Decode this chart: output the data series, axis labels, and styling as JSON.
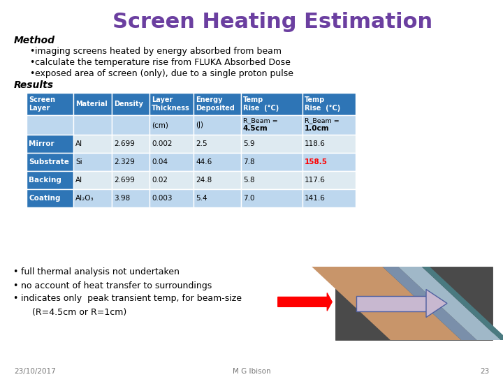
{
  "title": "Screen Heating Estimation",
  "title_color": "#6B3FA0",
  "title_fontsize": 22,
  "bg_color": "#FFFFFF",
  "method_label": "Method",
  "results_label": "Results",
  "method_bullets": [
    "imaging screens heated by energy absorbed from beam",
    "calculate the temperature rise from FLUKA Absorbed Dose",
    "exposed area of screen (only), due to a single proton pulse"
  ],
  "bottom_bullets": [
    "full thermal analysis not undertaken",
    "no account of heat transfer to surroundings",
    "indicates only  peak transient temp, for beam-size"
  ],
  "bottom_bullet4": "    (R=4.5cm or R=1cm)",
  "table_header_bg": "#2E75B6",
  "table_header_color": "#FFFFFF",
  "table_row_label_bg": "#2E75B6",
  "table_row_label_color": "#FFFFFF",
  "table_unit_row_bg": "#BDD7EE",
  "table_odd_row_bg": "#DEEAF1",
  "table_even_row_bg": "#BDD7EE",
  "table_text_color": "#000000",
  "table_highlight_color": "#FF0000",
  "col_headers": [
    "Screen\nLayer",
    "Material",
    "Density",
    "Layer\nThickness",
    "Energy\nDeposited",
    "Temp\nRise  (°C)",
    "Temp\nRise  (°C)"
  ],
  "unit_row": [
    "",
    "",
    "",
    "(cm)",
    "(J)",
    "R_Beam =\n4.5cm",
    "R_Beam =\n1.0cm"
  ],
  "rows": [
    {
      "label": "Mirror",
      "material": "Al",
      "density": "2.699",
      "thickness": "0.002",
      "energy": "2.5",
      "temp1": "5.9",
      "temp2": "118.6",
      "highlight": false
    },
    {
      "label": "Substrate",
      "material": "Si",
      "density": "2.329",
      "thickness": "0.04",
      "energy": "44.6",
      "temp1": "7.8",
      "temp2": "158.5",
      "highlight": true
    },
    {
      "label": "Backing",
      "material": "Al",
      "density": "2.699",
      "thickness": "0.02",
      "energy": "24.8",
      "temp1": "5.8",
      "temp2": "117.6",
      "highlight": false
    },
    {
      "label": "Coating",
      "material": "Al₂O₃",
      "density": "3.98",
      "thickness": "0.003",
      "energy": "5.4",
      "temp1": "7.0",
      "temp2": "141.6",
      "highlight": false
    }
  ],
  "footer_date": "23/10/2017",
  "footer_center": "M G Ibison",
  "footer_page": "23"
}
